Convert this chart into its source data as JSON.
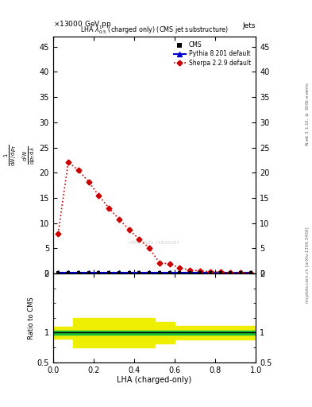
{
  "title_top_left": "13000 GeV pp",
  "title_top_right": "Jets",
  "plot_title": "LHA $\\lambda^{1}_{0.5}$ (charged only) (CMS jet substructure)",
  "xlabel": "LHA (charged-only)",
  "ylabel_main_lines": [
    "mathrm d$^2$N",
    "mathrm d p$_T$ mathrm d lambda",
    "1",
    "mathrm d N / mathrm d p$_T$"
  ],
  "ylabel_ratio": "Ratio to CMS",
  "right_label_top": "Rivet 3.1.10, $\\geq$ 500k events",
  "right_label_bottom": "mcplots.cern.ch [arXiv:1306.3436]",
  "watermark": "CMS_2021_I1920187",
  "cms_x": [
    0.025,
    0.075,
    0.125,
    0.175,
    0.225,
    0.275,
    0.325,
    0.375,
    0.425,
    0.475,
    0.525,
    0.575,
    0.625,
    0.675,
    0.725,
    0.775,
    0.825,
    0.875,
    0.925,
    0.975
  ],
  "cms_y": [
    0.15,
    0.15,
    0.15,
    0.15,
    0.15,
    0.15,
    0.15,
    0.15,
    0.15,
    0.15,
    0.15,
    0.15,
    0.15,
    0.15,
    0.15,
    0.15,
    0.15,
    0.15,
    0.15,
    0.15
  ],
  "pythia_x": [
    0.025,
    0.075,
    0.125,
    0.175,
    0.225,
    0.275,
    0.325,
    0.375,
    0.425,
    0.475,
    0.525,
    0.575,
    0.625,
    0.675,
    0.725,
    0.775,
    0.825,
    0.875,
    0.925,
    0.975
  ],
  "pythia_y": [
    0.15,
    0.15,
    0.15,
    0.15,
    0.15,
    0.15,
    0.15,
    0.15,
    0.15,
    0.15,
    0.15,
    0.15,
    0.15,
    0.15,
    0.15,
    0.15,
    0.15,
    0.15,
    0.15,
    0.15
  ],
  "sherpa_x": [
    0.025,
    0.075,
    0.125,
    0.175,
    0.225,
    0.275,
    0.325,
    0.375,
    0.425,
    0.475,
    0.525,
    0.575,
    0.625,
    0.675,
    0.725,
    0.775,
    0.825,
    0.875,
    0.925,
    0.975
  ],
  "sherpa_y": [
    7.9,
    22.1,
    20.5,
    18.2,
    15.5,
    13.0,
    10.8,
    8.7,
    6.8,
    5.0,
    2.1,
    1.9,
    1.1,
    0.7,
    0.5,
    0.35,
    0.25,
    0.15,
    0.1,
    0.05
  ],
  "ylim_main": [
    0,
    47
  ],
  "ylim_ratio": [
    0.5,
    2.0
  ],
  "xlim": [
    0.0,
    1.0
  ],
  "yellow_band_x": [
    0.0,
    0.05,
    0.05,
    0.1,
    0.1,
    0.15,
    0.15,
    0.2,
    0.2,
    0.25,
    0.25,
    0.3,
    0.3,
    0.35,
    0.35,
    0.4,
    0.4,
    0.45,
    0.45,
    0.5,
    0.5,
    0.55,
    0.55,
    0.6,
    0.6,
    0.65,
    0.65,
    0.7,
    0.7,
    0.75,
    0.75,
    0.8,
    0.8,
    0.85,
    0.85,
    0.9,
    0.9,
    0.95,
    0.95,
    1.0
  ],
  "yellow_lo": [
    0.9,
    0.9,
    0.9,
    0.9,
    0.75,
    0.75,
    0.75,
    0.75,
    0.75,
    0.75,
    0.75,
    0.75,
    0.75,
    0.75,
    0.75,
    0.75,
    0.75,
    0.75,
    0.75,
    0.75,
    0.82,
    0.82,
    0.82,
    0.82,
    0.88,
    0.88,
    0.88,
    0.88,
    0.88,
    0.88,
    0.88,
    0.88,
    0.88,
    0.88,
    0.88,
    0.88,
    0.88,
    0.88,
    0.88,
    0.88
  ],
  "yellow_hi": [
    1.1,
    1.1,
    1.1,
    1.1,
    1.25,
    1.25,
    1.25,
    1.25,
    1.25,
    1.25,
    1.25,
    1.25,
    1.25,
    1.25,
    1.25,
    1.25,
    1.25,
    1.25,
    1.25,
    1.25,
    1.18,
    1.18,
    1.18,
    1.18,
    1.12,
    1.12,
    1.12,
    1.12,
    1.12,
    1.12,
    1.12,
    1.12,
    1.12,
    1.12,
    1.12,
    1.12,
    1.12,
    1.12,
    1.12,
    1.12
  ],
  "green_band_x": [
    0.0,
    0.05,
    0.05,
    0.1,
    0.1,
    0.15,
    0.15,
    0.2,
    0.2,
    0.25,
    0.25,
    0.3,
    0.3,
    0.35,
    0.35,
    0.4,
    0.4,
    0.45,
    0.45,
    0.5,
    0.5,
    0.55,
    0.55,
    0.6,
    0.6,
    0.65,
    0.65,
    0.7,
    0.7,
    0.75,
    0.75,
    0.8,
    0.8,
    0.85,
    0.85,
    0.9,
    0.9,
    0.95,
    0.95,
    1.0
  ],
  "green_lo": [
    0.97,
    0.97,
    0.97,
    0.97,
    0.97,
    0.97,
    0.97,
    0.97,
    0.97,
    0.97,
    0.97,
    0.97,
    0.97,
    0.97,
    0.97,
    0.97,
    0.97,
    0.97,
    0.97,
    0.97,
    0.97,
    0.97,
    0.97,
    0.97,
    0.97,
    0.97,
    0.97,
    0.97,
    0.97,
    0.97,
    0.97,
    0.97,
    0.97,
    0.97,
    0.97,
    0.97,
    0.97,
    0.97,
    0.97,
    0.97
  ],
  "green_hi": [
    1.03,
    1.03,
    1.03,
    1.03,
    1.03,
    1.03,
    1.03,
    1.03,
    1.03,
    1.03,
    1.03,
    1.03,
    1.03,
    1.03,
    1.03,
    1.03,
    1.03,
    1.03,
    1.03,
    1.03,
    1.03,
    1.03,
    1.03,
    1.03,
    1.03,
    1.03,
    1.03,
    1.03,
    1.03,
    1.03,
    1.03,
    1.03,
    1.03,
    1.03,
    1.03,
    1.03,
    1.03,
    1.03,
    1.03,
    1.03
  ],
  "cms_color": "#000000",
  "pythia_color": "#0000cc",
  "sherpa_color": "#cc0000",
  "green_color": "#00bb44",
  "yellow_color": "#eeee00",
  "bg_color": "#ffffff"
}
